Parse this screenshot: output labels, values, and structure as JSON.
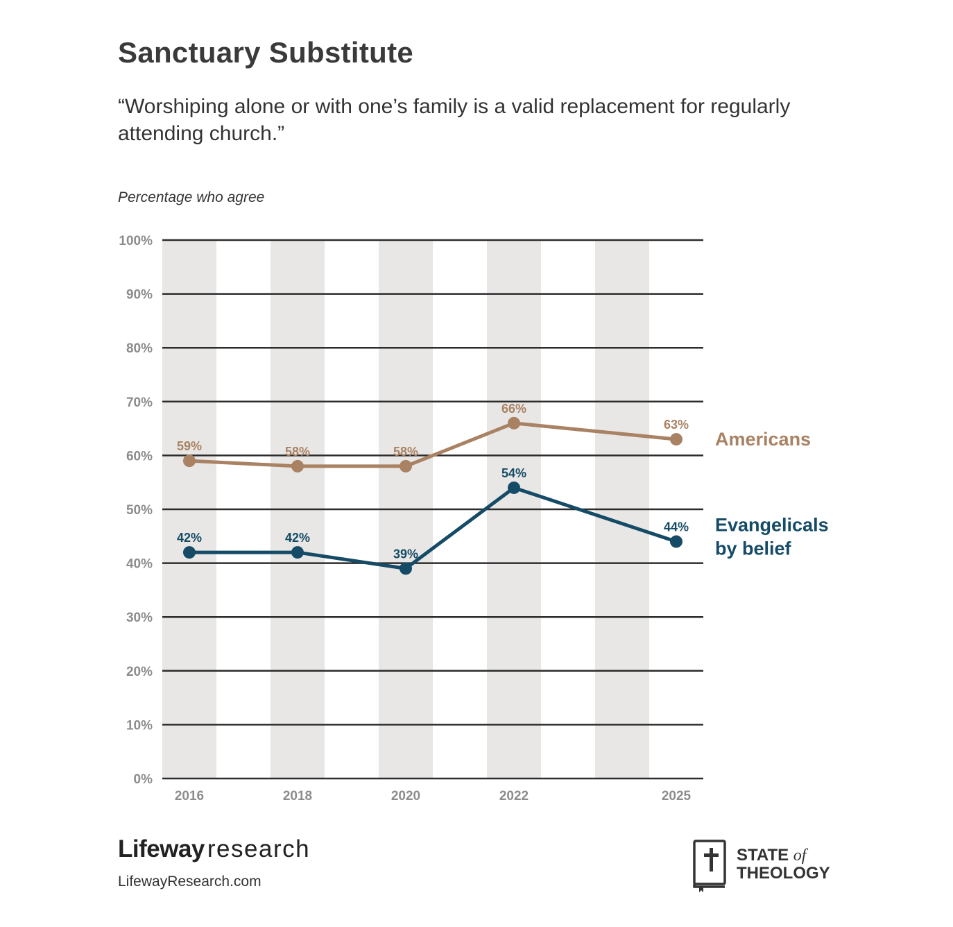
{
  "title": "Sanctuary Substitute",
  "subtitle": "“Worshiping alone or with one’s family is a valid replacement for regularly attending church.”",
  "measure_label": "Percentage who agree",
  "footer": {
    "brand_bold": "Lifeway",
    "brand_light": "research",
    "website": "LifewayResearch.com",
    "partner_line1": "STATE",
    "partner_of": "of",
    "partner_line2": "THEOLOGY",
    "partner_icon": "bible-cross-icon"
  },
  "colors": {
    "americans": "#a98264",
    "evangelicals": "#154b66",
    "band": "#e8e7e5",
    "grid": "#2c2c2c",
    "tick": "#8c8c8c"
  },
  "chart_data": {
    "type": "line",
    "x": [
      "2016",
      "2018",
      "2020",
      "2022",
      "2025"
    ],
    "x_values": [
      2016,
      2018,
      2020,
      2022,
      2025
    ],
    "xlim": [
      2015.5,
      2025.5
    ],
    "ylim": [
      0,
      100
    ],
    "yticks": [
      0,
      10,
      20,
      30,
      40,
      50,
      60,
      70,
      80,
      90,
      100
    ],
    "ytick_labels": [
      "0%",
      "10%",
      "20%",
      "30%",
      "40%",
      "50%",
      "60%",
      "70%",
      "80%",
      "90%",
      "100%"
    ],
    "shaded_years": [
      2016,
      2018,
      2020,
      2022,
      2024
    ],
    "grid": true,
    "legend": "right, inline labels at series ends",
    "series": [
      {
        "name": "Americans",
        "values": [
          59,
          58,
          58,
          66,
          63
        ],
        "labels": [
          "59%",
          "58%",
          "58%",
          "66%",
          "63%"
        ],
        "color": "#a98264"
      },
      {
        "name": "Evangelicals by belief",
        "name_lines": [
          "Evangelicals",
          "by belief"
        ],
        "values": [
          42,
          42,
          39,
          54,
          44
        ],
        "labels": [
          "42%",
          "42%",
          "39%",
          "54%",
          "44%"
        ],
        "color": "#154b66"
      }
    ]
  }
}
